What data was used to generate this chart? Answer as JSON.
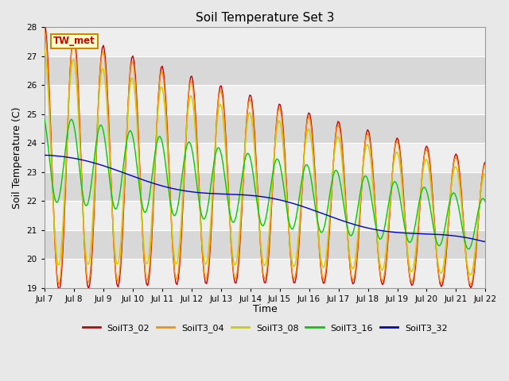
{
  "title": "Soil Temperature Set 3",
  "ylabel": "Soil Temperature (C)",
  "xlabel": "Time",
  "ylim": [
    19.0,
    28.0
  ],
  "yticks": [
    19.0,
    20.0,
    21.0,
    22.0,
    23.0,
    24.0,
    25.0,
    26.0,
    27.0,
    28.0
  ],
  "xtick_labels": [
    "Jul 7",
    "Jul 8",
    "Jul 9",
    "Jul 10",
    "Jul 11",
    "Jul 12",
    "Jul 13",
    "Jul 14",
    "Jul 15",
    "Jul 16",
    "Jul 17",
    "Jul 18",
    "Jul 19",
    "Jul 20",
    "Jul 21",
    "Jul 22"
  ],
  "bg_color": "#e8e8e8",
  "plot_bg_color": "#d8d8d8",
  "stripe_color": "#eeeeee",
  "legend_entries": [
    "SoilT3_02",
    "SoilT3_04",
    "SoilT3_08",
    "SoilT3_16",
    "SoilT3_32"
  ],
  "line_colors": [
    "#cc0000",
    "#ff8c00",
    "#cccc00",
    "#00cc00",
    "#0000cc"
  ],
  "tw_met_label": "TW_met",
  "tw_met_bg": "#ffffcc",
  "tw_met_border": "#cc8800",
  "n_days": 15,
  "n_pts": 360
}
